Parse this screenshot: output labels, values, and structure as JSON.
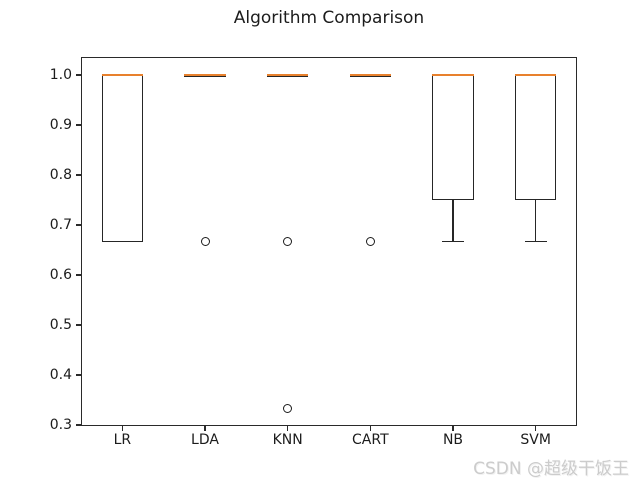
{
  "title": "Algorithm Comparison",
  "watermark": "CSDN @超级干饭王",
  "colors": {
    "median": "#e8812d",
    "line": "#262626",
    "watermark": "#cccccc",
    "background": "#ffffff"
  },
  "chart_data": {
    "type": "boxplot",
    "title": "Algorithm Comparison",
    "categories": [
      "LR",
      "LDA",
      "KNN",
      "CART",
      "NB",
      "SVM"
    ],
    "series": [
      {
        "name": "LR",
        "whisker_low": 0.667,
        "q1": 0.667,
        "median": 1.0,
        "q3": 1.0,
        "whisker_high": 1.0,
        "fliers": []
      },
      {
        "name": "LDA",
        "whisker_low": 1.0,
        "q1": 1.0,
        "median": 1.0,
        "q3": 1.0,
        "whisker_high": 1.0,
        "fliers": [
          0.667
        ]
      },
      {
        "name": "KNN",
        "whisker_low": 1.0,
        "q1": 1.0,
        "median": 1.0,
        "q3": 1.0,
        "whisker_high": 1.0,
        "fliers": [
          0.667,
          0.333
        ]
      },
      {
        "name": "CART",
        "whisker_low": 1.0,
        "q1": 1.0,
        "median": 1.0,
        "q3": 1.0,
        "whisker_high": 1.0,
        "fliers": [
          0.667
        ]
      },
      {
        "name": "NB",
        "whisker_low": 0.667,
        "q1": 0.75,
        "median": 1.0,
        "q3": 1.0,
        "whisker_high": 1.0,
        "fliers": []
      },
      {
        "name": "SVM",
        "whisker_low": 0.667,
        "q1": 0.75,
        "median": 1.0,
        "q3": 1.0,
        "whisker_high": 1.0,
        "fliers": []
      }
    ],
    "yticks": [
      1.0,
      0.9,
      0.8,
      0.7,
      0.6,
      0.5,
      0.4,
      0.3
    ],
    "ytick_labels": [
      "1.0",
      "0.9",
      "0.8",
      "0.7",
      "0.6",
      "0.5",
      "0.4",
      "0.3"
    ],
    "ylim": [
      0.298,
      1.036
    ],
    "xlim": [
      0.5,
      6.5
    ],
    "xlabel": "",
    "ylabel": "",
    "grid": false,
    "legend": null,
    "box_width_units": 0.5
  }
}
